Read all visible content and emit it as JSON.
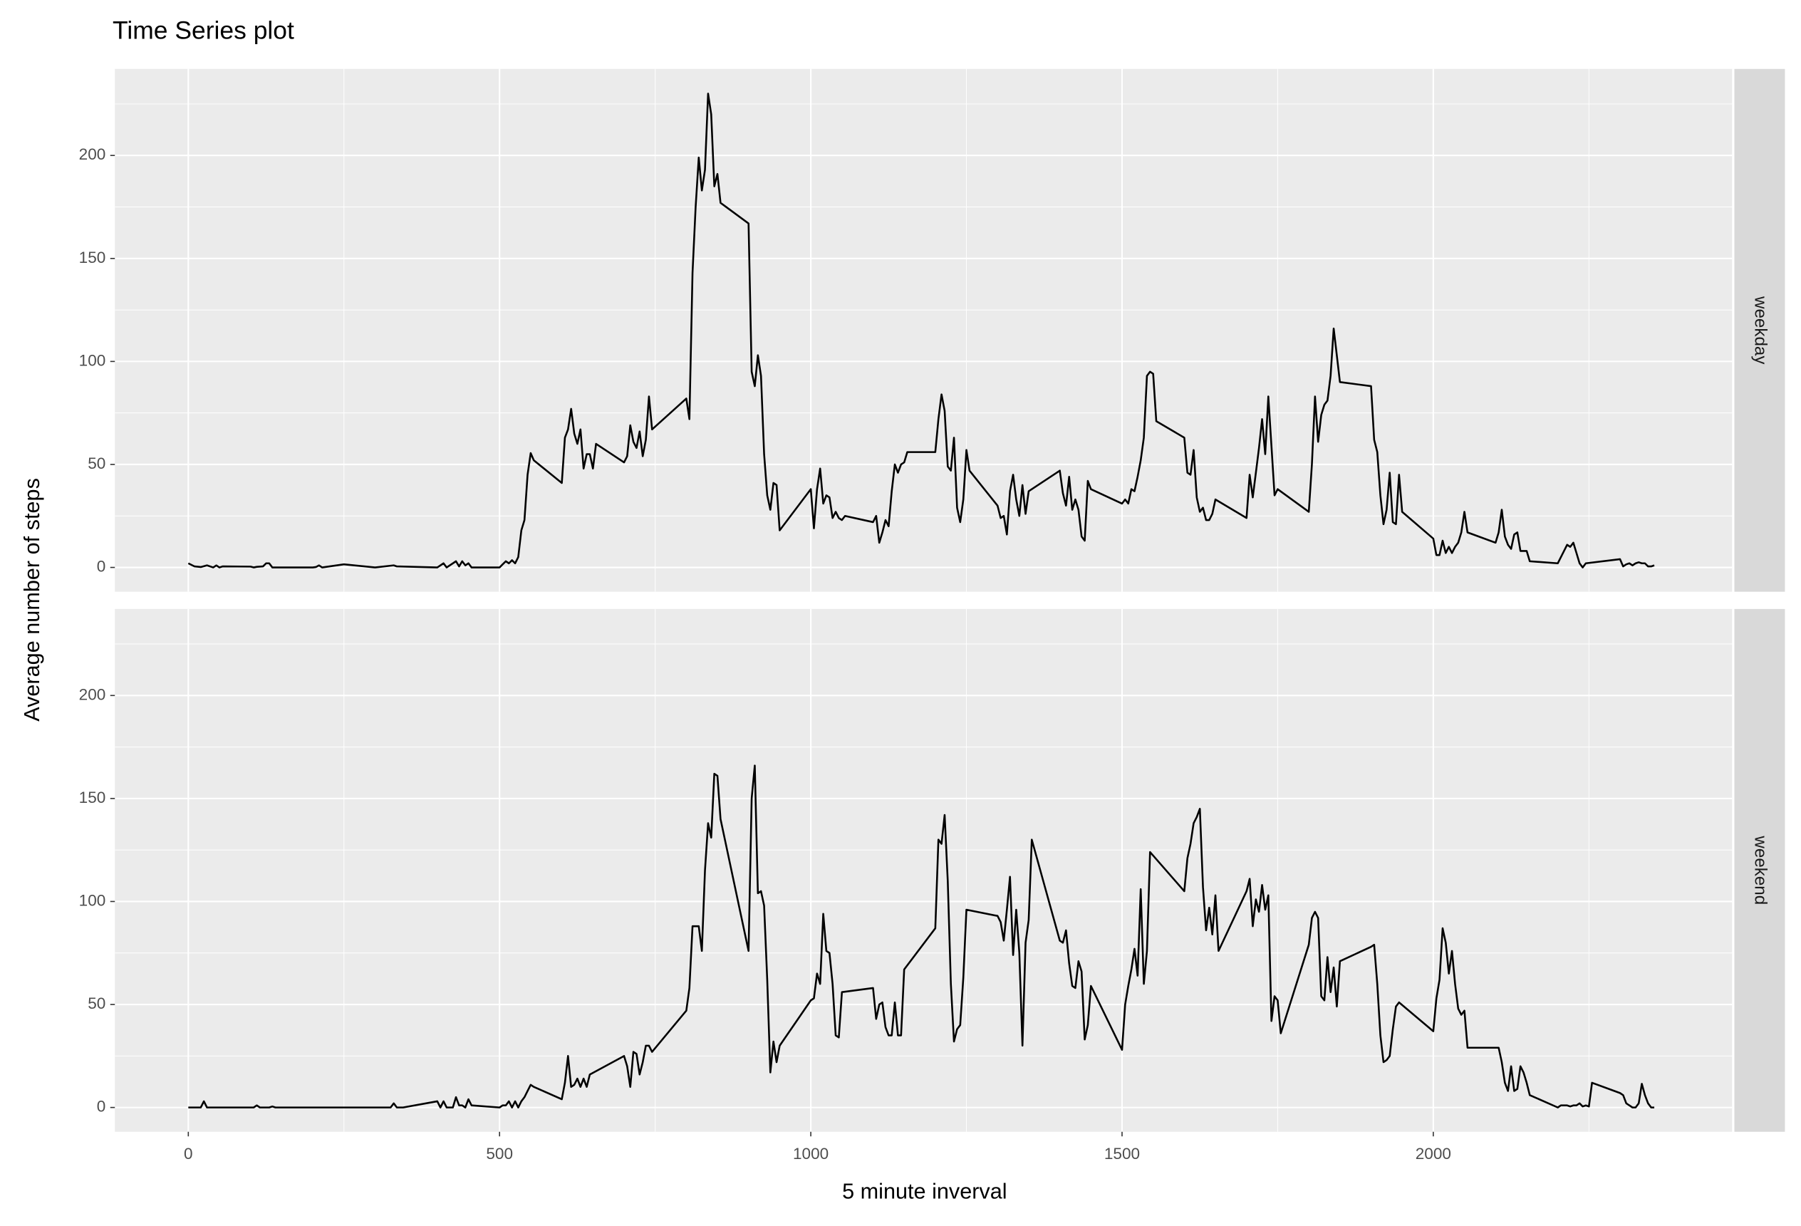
{
  "chart_data": {
    "type": "line",
    "title": "Time Series plot",
    "x_label": "5 minute inverval",
    "y_label": "Average number of steps",
    "xlim": [
      -118,
      2480
    ],
    "xticks": [
      0,
      500,
      1000,
      1500,
      2000
    ],
    "xminor": [
      250,
      750,
      1250,
      1750,
      2250
    ],
    "ylim": [
      -11.8,
      242
    ],
    "yticks": [
      0,
      50,
      100,
      150,
      200
    ],
    "yminor": [
      25,
      75,
      125,
      175,
      225
    ],
    "grid": true,
    "panel_color": "#ebebeb",
    "strip_color": "#d9d9d9",
    "series": [
      {
        "name": "weekday",
        "color": "#000000",
        "x": [
          0,
          10,
          20,
          30,
          40,
          45,
          50,
          55,
          100,
          105,
          110,
          120,
          125,
          130,
          135,
          200,
          205,
          210,
          215,
          250,
          300,
          330,
          335,
          400,
          410,
          415,
          430,
          435,
          440,
          445,
          450,
          455,
          500,
          505,
          510,
          515,
          520,
          525,
          530,
          535,
          540,
          545,
          550,
          555,
          600,
          605,
          610,
          615,
          620,
          625,
          630,
          635,
          640,
          645,
          650,
          655,
          700,
          705,
          710,
          715,
          720,
          725,
          730,
          735,
          740,
          745,
          800,
          805,
          810,
          815,
          820,
          825,
          830,
          835,
          840,
          845,
          850,
          855,
          900,
          905,
          910,
          915,
          920,
          925,
          930,
          935,
          940,
          945,
          950,
          1000,
          1005,
          1010,
          1015,
          1020,
          1025,
          1030,
          1035,
          1040,
          1045,
          1050,
          1055,
          1100,
          1105,
          1110,
          1115,
          1120,
          1125,
          1130,
          1135,
          1140,
          1145,
          1150,
          1155,
          1200,
          1205,
          1210,
          1215,
          1220,
          1225,
          1230,
          1235,
          1240,
          1245,
          1250,
          1255,
          1300,
          1305,
          1310,
          1315,
          1320,
          1325,
          1330,
          1335,
          1340,
          1345,
          1350,
          1400,
          1405,
          1410,
          1415,
          1420,
          1425,
          1430,
          1435,
          1440,
          1445,
          1450,
          1500,
          1505,
          1510,
          1515,
          1520,
          1525,
          1530,
          1535,
          1540,
          1545,
          1550,
          1555,
          1600,
          1605,
          1610,
          1615,
          1620,
          1625,
          1630,
          1635,
          1640,
          1645,
          1650,
          1700,
          1705,
          1710,
          1715,
          1720,
          1725,
          1730,
          1735,
          1740,
          1745,
          1750,
          1800,
          1805,
          1810,
          1815,
          1820,
          1825,
          1830,
          1835,
          1840,
          1845,
          1850,
          1900,
          1905,
          1910,
          1915,
          1920,
          1925,
          1930,
          1935,
          1940,
          1945,
          1950,
          2000,
          2005,
          2010,
          2015,
          2020,
          2025,
          2030,
          2035,
          2040,
          2045,
          2050,
          2055,
          2100,
          2105,
          2110,
          2115,
          2120,
          2125,
          2130,
          2135,
          2140,
          2145,
          2150,
          2155,
          2200,
          2205,
          2210,
          2215,
          2220,
          2225,
          2230,
          2235,
          2240,
          2245,
          2300,
          2305,
          2310,
          2315,
          2320,
          2325,
          2330,
          2335,
          2340,
          2345,
          2350,
          2355
        ],
        "values": [
          2,
          0.5,
          0.2,
          1,
          0,
          1,
          0,
          0.5,
          0.4,
          0,
          0.3,
          0.5,
          2,
          2,
          0,
          0,
          0.2,
          1,
          0,
          1.5,
          0,
          1,
          0.5,
          0,
          2,
          0,
          3,
          0.5,
          3,
          1,
          2,
          0,
          0,
          1.5,
          3,
          2,
          3.5,
          2,
          5,
          18,
          23,
          45,
          55.5,
          52,
          41,
          63,
          67,
          77,
          65,
          60,
          67,
          48,
          55,
          55,
          48,
          60,
          51,
          54,
          69,
          61,
          58,
          66,
          54,
          62,
          83,
          67,
          82,
          72,
          143,
          175,
          199,
          183,
          193,
          230,
          220,
          185,
          191,
          177,
          167,
          95,
          88,
          103,
          93,
          55,
          35,
          28,
          41,
          40,
          18,
          38,
          19,
          38,
          48,
          31,
          35,
          34,
          24,
          27,
          24,
          23,
          25,
          22,
          25,
          12,
          17,
          23,
          20,
          37,
          50,
          46,
          50,
          51,
          56,
          56,
          72,
          84,
          76,
          49,
          47,
          63,
          29,
          22,
          33,
          57,
          47,
          30,
          24,
          25,
          16,
          37,
          45,
          33,
          25,
          40,
          26,
          37,
          47,
          36,
          30,
          44,
          28,
          33,
          28,
          15,
          13,
          42,
          38,
          31,
          33,
          31,
          38,
          37,
          44,
          52,
          63,
          93,
          95,
          94,
          71,
          63,
          46,
          45,
          57,
          34,
          27,
          29,
          23,
          23,
          26,
          33,
          24,
          45,
          34,
          46,
          58,
          72,
          55,
          83,
          59,
          35,
          38,
          27,
          50,
          83,
          61,
          74,
          79,
          81,
          93,
          116,
          103,
          90,
          88,
          62,
          56,
          35,
          21,
          28,
          46,
          22,
          21,
          45,
          27,
          14,
          6,
          6,
          13,
          7,
          10,
          7,
          10,
          12,
          17,
          27,
          17,
          12,
          17,
          28,
          15,
          11,
          9,
          16,
          17,
          8,
          8,
          8,
          3,
          2,
          5,
          8,
          11,
          10,
          12,
          7,
          2,
          0,
          2,
          4,
          0.5,
          1.5,
          2,
          1,
          2,
          2.5,
          2,
          2,
          0.5,
          0.5,
          1
        ]
      },
      {
        "name": "weekend",
        "color": "#000000",
        "x": [
          0,
          10,
          20,
          25,
          30,
          35,
          100,
          105,
          110,
          115,
          120,
          130,
          135,
          140,
          200,
          300,
          325,
          330,
          335,
          345,
          400,
          405,
          410,
          415,
          420,
          425,
          430,
          435,
          440,
          445,
          450,
          455,
          500,
          505,
          510,
          515,
          520,
          525,
          530,
          535,
          540,
          545,
          550,
          555,
          600,
          605,
          610,
          615,
          620,
          625,
          630,
          635,
          640,
          645,
          700,
          705,
          710,
          715,
          720,
          725,
          730,
          735,
          740,
          745,
          800,
          805,
          810,
          815,
          820,
          825,
          830,
          835,
          840,
          845,
          850,
          855,
          900,
          905,
          910,
          915,
          920,
          925,
          930,
          935,
          940,
          945,
          950,
          1000,
          1005,
          1010,
          1015,
          1020,
          1025,
          1030,
          1035,
          1040,
          1045,
          1050,
          1100,
          1105,
          1110,
          1115,
          1120,
          1125,
          1130,
          1135,
          1140,
          1145,
          1150,
          1200,
          1205,
          1210,
          1215,
          1220,
          1225,
          1230,
          1235,
          1240,
          1245,
          1250,
          1300,
          1305,
          1310,
          1315,
          1320,
          1325,
          1330,
          1335,
          1340,
          1345,
          1350,
          1355,
          1400,
          1405,
          1410,
          1415,
          1420,
          1425,
          1430,
          1435,
          1440,
          1445,
          1450,
          1500,
          1505,
          1510,
          1515,
          1520,
          1525,
          1530,
          1535,
          1540,
          1545,
          1600,
          1605,
          1610,
          1615,
          1620,
          1625,
          1630,
          1635,
          1640,
          1645,
          1650,
          1655,
          1700,
          1705,
          1710,
          1715,
          1720,
          1725,
          1730,
          1735,
          1740,
          1745,
          1750,
          1755,
          1800,
          1805,
          1810,
          1815,
          1820,
          1825,
          1830,
          1835,
          1840,
          1845,
          1850,
          1900,
          1905,
          1910,
          1915,
          1920,
          1925,
          1930,
          1935,
          1940,
          1945,
          2000,
          2005,
          2010,
          2015,
          2020,
          2025,
          2030,
          2035,
          2040,
          2045,
          2050,
          2055,
          2100,
          2105,
          2110,
          2115,
          2120,
          2125,
          2130,
          2135,
          2140,
          2145,
          2150,
          2155,
          2200,
          2205,
          2210,
          2215,
          2220,
          2225,
          2230,
          2235,
          2240,
          2245,
          2250,
          2255,
          2300,
          2305,
          2310,
          2315,
          2320,
          2325,
          2330,
          2335,
          2340,
          2345,
          2350,
          2355
        ],
        "values": [
          0,
          0,
          0,
          3,
          0,
          0,
          0,
          0,
          1,
          0,
          0,
          0,
          0.5,
          0,
          0,
          0,
          0,
          2,
          0,
          0,
          3,
          0,
          3,
          0,
          0,
          0,
          5,
          1,
          1,
          0,
          4,
          1,
          0,
          1,
          1,
          3,
          0,
          3,
          0,
          3,
          5,
          8,
          11,
          10,
          4,
          12,
          25,
          10,
          11,
          14,
          10,
          14,
          10,
          16,
          25,
          20,
          10,
          27,
          26,
          16,
          22,
          30,
          30,
          27,
          47,
          58,
          88,
          88,
          88,
          76,
          115,
          138,
          131,
          162,
          161,
          140,
          76,
          150,
          166,
          104,
          105,
          98,
          62,
          17,
          32,
          22,
          30,
          52,
          53,
          65,
          60,
          94,
          76,
          75,
          60,
          35,
          34,
          56,
          58,
          43,
          50,
          51,
          39,
          35,
          35,
          51,
          35,
          35,
          67,
          87,
          130,
          128,
          142,
          110,
          60,
          32,
          38,
          40,
          63,
          96,
          93,
          90,
          81,
          96,
          112,
          74,
          96,
          75,
          30,
          80,
          91,
          130,
          81,
          80,
          86,
          70,
          59,
          58,
          71,
          66,
          33,
          40,
          59,
          28,
          50,
          59,
          67,
          77,
          64,
          106,
          60,
          76,
          124,
          105,
          121,
          128,
          138,
          141,
          145,
          107,
          86,
          97,
          84,
          103,
          76,
          105,
          111,
          88,
          101,
          95,
          108,
          96,
          103,
          42,
          54,
          52,
          36,
          79,
          92,
          95,
          92,
          54,
          52,
          73,
          56,
          68,
          49,
          71,
          78,
          79,
          60,
          35,
          22,
          23,
          25,
          38,
          49,
          51,
          37,
          53,
          62,
          87,
          80,
          65,
          76,
          60,
          48,
          45,
          47,
          29,
          29,
          29,
          22,
          12,
          8,
          20,
          8,
          9,
          20,
          17,
          12,
          6,
          0,
          1,
          1,
          1,
          0.5,
          1,
          1,
          2,
          0.5,
          1,
          0.5,
          12,
          7,
          6,
          2,
          1,
          0,
          0,
          2,
          11.5,
          6,
          2,
          0,
          0
        ]
      }
    ]
  }
}
